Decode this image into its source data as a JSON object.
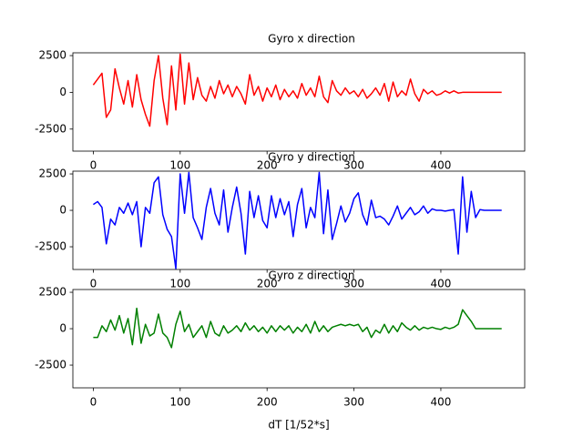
{
  "chart_data": [
    {
      "type": "line",
      "title": "Gyro x direction",
      "x": [
        0,
        5,
        10,
        15,
        20,
        25,
        30,
        35,
        40,
        45,
        50,
        55,
        60,
        65,
        70,
        75,
        80,
        85,
        90,
        95,
        100,
        105,
        110,
        115,
        120,
        125,
        130,
        135,
        140,
        145,
        150,
        155,
        160,
        165,
        170,
        175,
        180,
        185,
        190,
        195,
        200,
        205,
        210,
        215,
        220,
        225,
        230,
        235,
        240,
        245,
        250,
        255,
        260,
        265,
        270,
        275,
        280,
        285,
        290,
        295,
        300,
        305,
        310,
        315,
        320,
        325,
        330,
        335,
        340,
        345,
        350,
        355,
        360,
        365,
        370,
        375,
        380,
        385,
        390,
        395,
        400,
        405,
        410,
        415,
        420,
        425,
        430,
        435,
        440,
        445,
        450,
        455,
        460,
        465,
        470
      ],
      "series": [
        {
          "color": "#ff0000",
          "values": [
            500,
            900,
            1300,
            -1700,
            -1200,
            1600,
            300,
            -800,
            800,
            -1000,
            1200,
            -500,
            -1500,
            -2300,
            800,
            2500,
            -400,
            -2200,
            1800,
            -1200,
            2600,
            -800,
            2000,
            -500,
            1000,
            -200,
            -600,
            400,
            -400,
            800,
            -100,
            500,
            -300,
            400,
            -100,
            -800,
            1200,
            -200,
            400,
            -600,
            300,
            -300,
            500,
            -500,
            200,
            -300,
            100,
            -400,
            600,
            -200,
            300,
            -300,
            1100,
            -300,
            -700,
            800,
            100,
            -200,
            300,
            -100,
            100,
            -300,
            200,
            -400,
            -100,
            300,
            -200,
            600,
            -600,
            700,
            -300,
            100,
            -200,
            900,
            -100,
            -600,
            200,
            -100,
            100,
            -200,
            -100,
            100,
            -50,
            100,
            -50,
            0,
            0,
            0,
            0,
            0,
            0,
            0,
            0,
            0,
            0
          ]
        }
      ],
      "xlim": [
        -23.5,
        496.5
      ],
      "xticks": [
        0,
        100,
        200,
        300,
        400
      ],
      "ylim": [
        -4000,
        2690
      ],
      "yticks": [
        -2500,
        0,
        2500
      ]
    },
    {
      "type": "line",
      "title": "Gyro y direction",
      "x": [
        0,
        5,
        10,
        15,
        20,
        25,
        30,
        35,
        40,
        45,
        50,
        55,
        60,
        65,
        70,
        75,
        80,
        85,
        90,
        95,
        100,
        105,
        110,
        115,
        120,
        125,
        130,
        135,
        140,
        145,
        150,
        155,
        160,
        165,
        170,
        175,
        180,
        185,
        190,
        195,
        200,
        205,
        210,
        215,
        220,
        225,
        230,
        235,
        240,
        245,
        250,
        255,
        260,
        265,
        270,
        275,
        280,
        285,
        290,
        295,
        300,
        305,
        310,
        315,
        320,
        325,
        330,
        335,
        340,
        345,
        350,
        355,
        360,
        365,
        370,
        375,
        380,
        385,
        390,
        395,
        400,
        405,
        410,
        415,
        420,
        425,
        430,
        435,
        440,
        445,
        450,
        455,
        460,
        465,
        470
      ],
      "series": [
        {
          "color": "#0000ff",
          "values": [
            400,
            600,
            200,
            -2300,
            -600,
            -1000,
            200,
            -200,
            500,
            -300,
            600,
            -2500,
            200,
            -200,
            1900,
            2300,
            -300,
            -1300,
            -1800,
            -4000,
            2500,
            -200,
            2600,
            -500,
            -1200,
            -2000,
            200,
            1500,
            -200,
            -1000,
            1400,
            -1500,
            200,
            1600,
            -200,
            -3000,
            1300,
            -500,
            1000,
            -700,
            -1200,
            1000,
            -500,
            800,
            -300,
            600,
            -1800,
            400,
            1500,
            -1200,
            200,
            -500,
            2600,
            -1600,
            1400,
            -2000,
            -900,
            300,
            -800,
            -200,
            800,
            1200,
            -300,
            -1000,
            700,
            -500,
            -400,
            -600,
            -1000,
            -400,
            300,
            -600,
            -200,
            200,
            -300,
            -100,
            300,
            -200,
            100,
            0,
            0,
            -50,
            0,
            50,
            -3000,
            2300,
            -1500,
            1300,
            -500,
            50,
            0,
            0,
            0,
            0,
            0
          ]
        }
      ],
      "xlim": [
        -23.5,
        496.5
      ],
      "xticks": [
        0,
        100,
        200,
        300,
        400
      ],
      "ylim": [
        -4060,
        2690
      ],
      "yticks": [
        -2500,
        0,
        2500
      ]
    },
    {
      "type": "line",
      "title": "Gyro z direction",
      "xlabel": "dT [1/52*s]",
      "x": [
        0,
        5,
        10,
        15,
        20,
        25,
        30,
        35,
        40,
        45,
        50,
        55,
        60,
        65,
        70,
        75,
        80,
        85,
        90,
        95,
        100,
        105,
        110,
        115,
        120,
        125,
        130,
        135,
        140,
        145,
        150,
        155,
        160,
        165,
        170,
        175,
        180,
        185,
        190,
        195,
        200,
        205,
        210,
        215,
        220,
        225,
        230,
        235,
        240,
        245,
        250,
        255,
        260,
        265,
        270,
        275,
        280,
        285,
        290,
        295,
        300,
        305,
        310,
        315,
        320,
        325,
        330,
        335,
        340,
        345,
        350,
        355,
        360,
        365,
        370,
        375,
        380,
        385,
        390,
        395,
        400,
        405,
        410,
        415,
        420,
        425,
        430,
        435,
        440,
        445,
        450,
        455,
        460,
        465,
        470
      ],
      "series": [
        {
          "color": "#008000",
          "values": [
            -600,
            -600,
            200,
            -200,
            600,
            -100,
            900,
            -300,
            700,
            -1100,
            1400,
            -1000,
            300,
            -500,
            -300,
            1000,
            -300,
            -600,
            -1300,
            300,
            1200,
            -200,
            300,
            -600,
            -200,
            200,
            -600,
            500,
            -300,
            -500,
            200,
            -300,
            -100,
            200,
            -200,
            400,
            -100,
            200,
            -200,
            100,
            -300,
            200,
            -200,
            200,
            -100,
            200,
            -300,
            100,
            -200,
            300,
            -300,
            500,
            -200,
            200,
            -200,
            100,
            200,
            300,
            200,
            300,
            200,
            300,
            -200,
            100,
            -600,
            -100,
            -300,
            300,
            -300,
            200,
            -200,
            400,
            100,
            -100,
            200,
            -100,
            100,
            0,
            100,
            0,
            -50,
            100,
            0,
            100,
            300,
            1300,
            900,
            500,
            0,
            0,
            0,
            0,
            0,
            0,
            0
          ]
        }
      ],
      "xlim": [
        -23.5,
        496.5
      ],
      "xticks": [
        0,
        100,
        200,
        300,
        400
      ],
      "ylim": [
        -4060,
        2690
      ],
      "yticks": [
        -2500,
        0,
        2500
      ]
    }
  ]
}
